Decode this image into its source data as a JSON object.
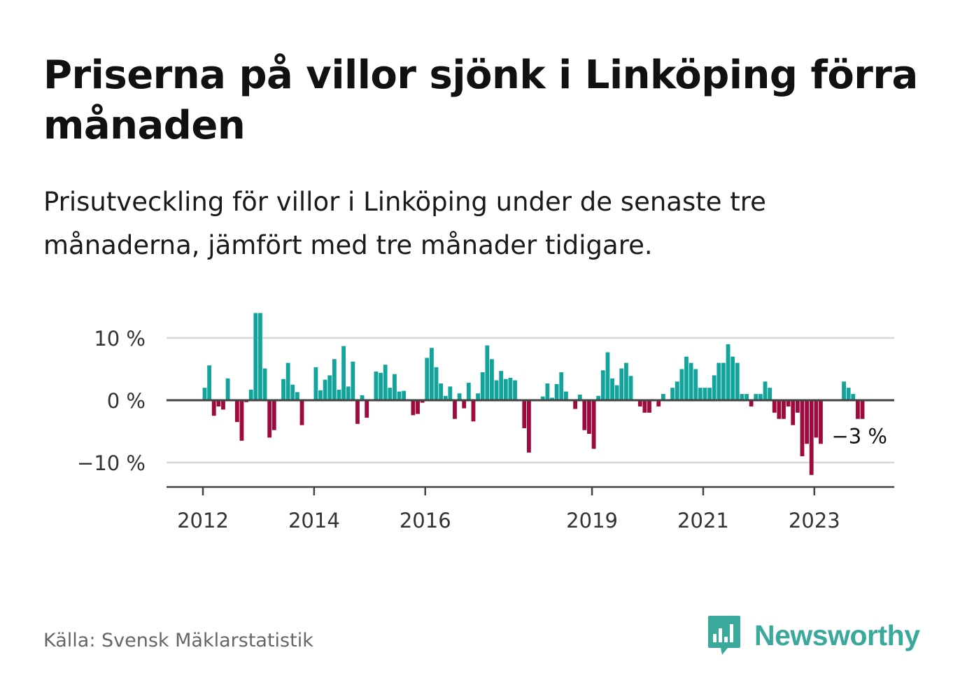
{
  "header": {
    "title": "Priserna på villor sjönk i Linköping förra månaden",
    "subtitle": "Prisutveckling för villor i Linköping under de senaste tre månaderna, jämfört med tre månader tidigare."
  },
  "footer": {
    "source": "Källa: Svensk Mäklarstatistik",
    "brand": "Newsworthy",
    "brand_icon": "bar-chart-speech-bubble-icon"
  },
  "colors": {
    "positive": "#12a39a",
    "negative": "#9e0a3e",
    "grid": "#d8d8d8",
    "axis": "#444444",
    "brand": "#3aa89a"
  },
  "chart_data": {
    "type": "bar",
    "x_start": "2012-01",
    "ylim": [
      -14,
      14
    ],
    "yticks": [
      {
        "value": 10,
        "label": "10 %"
      },
      {
        "value": 0,
        "label": "0 %"
      },
      {
        "value": -10,
        "label": "−10 %"
      }
    ],
    "xticks": [
      {
        "year": 2012,
        "label": "2012"
      },
      {
        "year": 2014,
        "label": "2014"
      },
      {
        "year": 2016,
        "label": "2016"
      },
      {
        "year": 2019,
        "label": "2019"
      },
      {
        "year": 2021,
        "label": "2021"
      },
      {
        "year": 2023,
        "label": "2023"
      }
    ],
    "grid": true,
    "annotation": {
      "label": "−3 %",
      "value": -3
    },
    "values": [
      2,
      5.6,
      -2.5,
      -1,
      -1.5,
      3.5,
      0,
      -3.5,
      -6.5,
      -0.3,
      1.7,
      14,
      14,
      5.1,
      -6,
      -4.8,
      0,
      3.4,
      6,
      2.5,
      1.3,
      -4,
      0,
      0,
      5.3,
      1.6,
      3.3,
      4,
      6.6,
      1.7,
      8.7,
      2.2,
      6.2,
      -3.8,
      0.8,
      -2.8,
      0,
      4.6,
      4.4,
      5.7,
      2,
      4.2,
      1.4,
      1.5,
      0,
      -2.4,
      -2.2,
      -0.4,
      6.8,
      8.4,
      5.3,
      2.7,
      0.7,
      2.2,
      -3,
      1.1,
      -1.3,
      2.8,
      -3.4,
      1.1,
      4.5,
      8.8,
      6.6,
      3.2,
      4.7,
      3.4,
      3.6,
      3.2,
      0,
      -4.5,
      -8.4,
      0,
      0,
      0.6,
      2.7,
      0.4,
      2.6,
      4.5,
      1.4,
      0,
      -1.4,
      0.9,
      -4.8,
      -5.4,
      -7.8,
      0.7,
      4.8,
      7.7,
      3.5,
      2.4,
      5.1,
      6,
      3.9,
      0,
      -1,
      -2,
      -2,
      0,
      -1,
      1,
      0,
      2,
      3,
      5,
      7,
      6,
      5,
      2,
      2,
      2,
      4,
      6,
      6,
      9,
      7,
      6,
      1,
      1,
      -1,
      1,
      1,
      3,
      2,
      -2,
      -3,
      -3,
      -1,
      -4,
      -2,
      -9,
      -7,
      -12,
      -6,
      -7,
      0,
      0,
      0,
      0,
      3,
      2,
      1,
      -3,
      -3
    ]
  }
}
